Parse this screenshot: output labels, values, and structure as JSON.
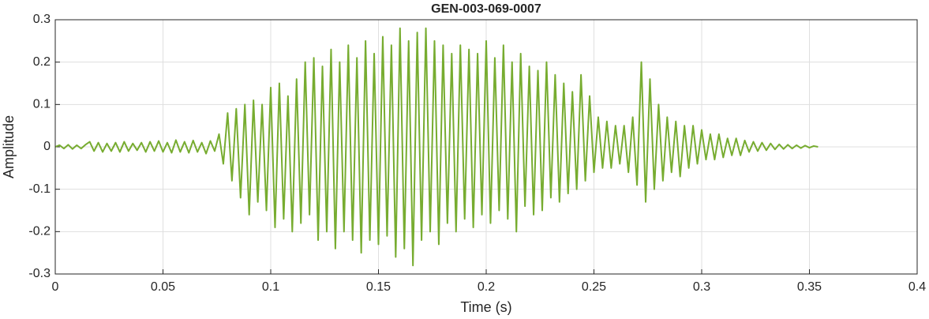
{
  "chart_data": {
    "type": "line",
    "title": "GEN-003-069-0007",
    "x_label": "Time (s)",
    "y_label": "Amplitude",
    "color": "#77ac30",
    "grid": true,
    "xlim": [
      0,
      0.4
    ],
    "xticks": [
      0,
      0.05,
      0.1,
      0.15,
      0.2,
      0.25,
      0.3,
      0.35,
      0.4
    ],
    "ylim": [
      -0.3,
      0.3
    ],
    "yticks": [
      -0.3,
      -0.2,
      -0.1,
      0,
      0.1,
      0.2,
      0.3
    ],
    "x": [
      0,
      0.002,
      0.004,
      0.006,
      0.008,
      0.01,
      0.012,
      0.014,
      0.016,
      0.018,
      0.02,
      0.022,
      0.024,
      0.026,
      0.028,
      0.03,
      0.032,
      0.034,
      0.036,
      0.038,
      0.04,
      0.042,
      0.044,
      0.046,
      0.048,
      0.05,
      0.052,
      0.054,
      0.056,
      0.058,
      0.06,
      0.062,
      0.064,
      0.066,
      0.068,
      0.07,
      0.072,
      0.074,
      0.076,
      0.078,
      0.08,
      0.082,
      0.084,
      0.086,
      0.088,
      0.09,
      0.092,
      0.094,
      0.096,
      0.098,
      0.1,
      0.102,
      0.104,
      0.106,
      0.108,
      0.11,
      0.112,
      0.114,
      0.116,
      0.118,
      0.12,
      0.122,
      0.124,
      0.126,
      0.128,
      0.13,
      0.132,
      0.134,
      0.136,
      0.138,
      0.14,
      0.142,
      0.144,
      0.146,
      0.148,
      0.15,
      0.152,
      0.154,
      0.156,
      0.158,
      0.16,
      0.162,
      0.164,
      0.166,
      0.168,
      0.17,
      0.172,
      0.174,
      0.176,
      0.178,
      0.18,
      0.182,
      0.184,
      0.186,
      0.188,
      0.19,
      0.192,
      0.194,
      0.196,
      0.198,
      0.2,
      0.202,
      0.204,
      0.206,
      0.208,
      0.21,
      0.212,
      0.214,
      0.216,
      0.218,
      0.22,
      0.222,
      0.224,
      0.226,
      0.228,
      0.23,
      0.232,
      0.234,
      0.236,
      0.238,
      0.24,
      0.242,
      0.244,
      0.246,
      0.248,
      0.25,
      0.252,
      0.254,
      0.256,
      0.258,
      0.26,
      0.262,
      0.264,
      0.266,
      0.268,
      0.27,
      0.272,
      0.274,
      0.276,
      0.278,
      0.28,
      0.282,
      0.284,
      0.286,
      0.288,
      0.29,
      0.292,
      0.294,
      0.296,
      0.298,
      0.3,
      0.302,
      0.304,
      0.306,
      0.308,
      0.31,
      0.312,
      0.314,
      0.316,
      0.318,
      0.32,
      0.322,
      0.324,
      0.326,
      0.328,
      0.33,
      0.332,
      0.334,
      0.336,
      0.338,
      0.34,
      0.342,
      0.344,
      0.346,
      0.348,
      0.35,
      0.352,
      0.354
    ],
    "values": [
      0,
      0.004,
      -0.004,
      0.005,
      -0.005,
      0.004,
      -0.004,
      0.005,
      0.012,
      -0.01,
      0.01,
      -0.012,
      0.008,
      -0.01,
      0.01,
      -0.012,
      0.012,
      -0.01,
      0.008,
      -0.008,
      0.01,
      -0.012,
      0.012,
      -0.01,
      0.014,
      -0.012,
      0.01,
      -0.014,
      0.016,
      -0.012,
      0.012,
      -0.014,
      0.015,
      -0.012,
      0.01,
      -0.016,
      0.014,
      -0.01,
      0.03,
      -0.04,
      0.08,
      -0.08,
      0.09,
      -0.12,
      0.1,
      -0.16,
      0.11,
      -0.13,
      0.1,
      -0.15,
      0.14,
      -0.19,
      0.15,
      -0.17,
      0.12,
      -0.2,
      0.16,
      -0.18,
      0.2,
      -0.16,
      0.21,
      -0.22,
      0.19,
      -0.2,
      0.23,
      -0.24,
      0.2,
      -0.2,
      0.24,
      -0.22,
      0.21,
      -0.25,
      0.25,
      -0.22,
      0.22,
      -0.23,
      0.26,
      -0.21,
      0.24,
      -0.26,
      0.28,
      -0.24,
      0.25,
      -0.28,
      0.27,
      -0.22,
      0.28,
      -0.2,
      0.25,
      -0.23,
      0.24,
      -0.18,
      0.22,
      -0.2,
      0.24,
      -0.17,
      0.23,
      -0.19,
      0.22,
      -0.16,
      0.25,
      -0.18,
      0.21,
      -0.15,
      0.24,
      -0.17,
      0.2,
      -0.2,
      0.22,
      -0.14,
      0.19,
      -0.16,
      0.18,
      -0.15,
      0.2,
      -0.12,
      0.17,
      -0.13,
      0.15,
      -0.11,
      0.13,
      -0.1,
      0.17,
      -0.08,
      0.12,
      -0.06,
      0.07,
      -0.05,
      0.06,
      -0.05,
      0.05,
      -0.04,
      0.05,
      -0.06,
      0.07,
      -0.09,
      0.2,
      -0.13,
      0.16,
      -0.1,
      0.1,
      -0.08,
      0.07,
      -0.06,
      0.06,
      -0.07,
      0.05,
      -0.05,
      0.05,
      -0.04,
      0.04,
      -0.03,
      0.03,
      -0.03,
      0.03,
      -0.025,
      0.02,
      -0.02,
      0.02,
      -0.02,
      0.015,
      -0.012,
      0.012,
      -0.01,
      0.01,
      -0.008,
      0.008,
      -0.006,
      0.006,
      -0.005,
      0.005,
      -0.004,
      0.004,
      -0.003,
      0.003,
      -0.002,
      0.002,
      0
    ]
  }
}
